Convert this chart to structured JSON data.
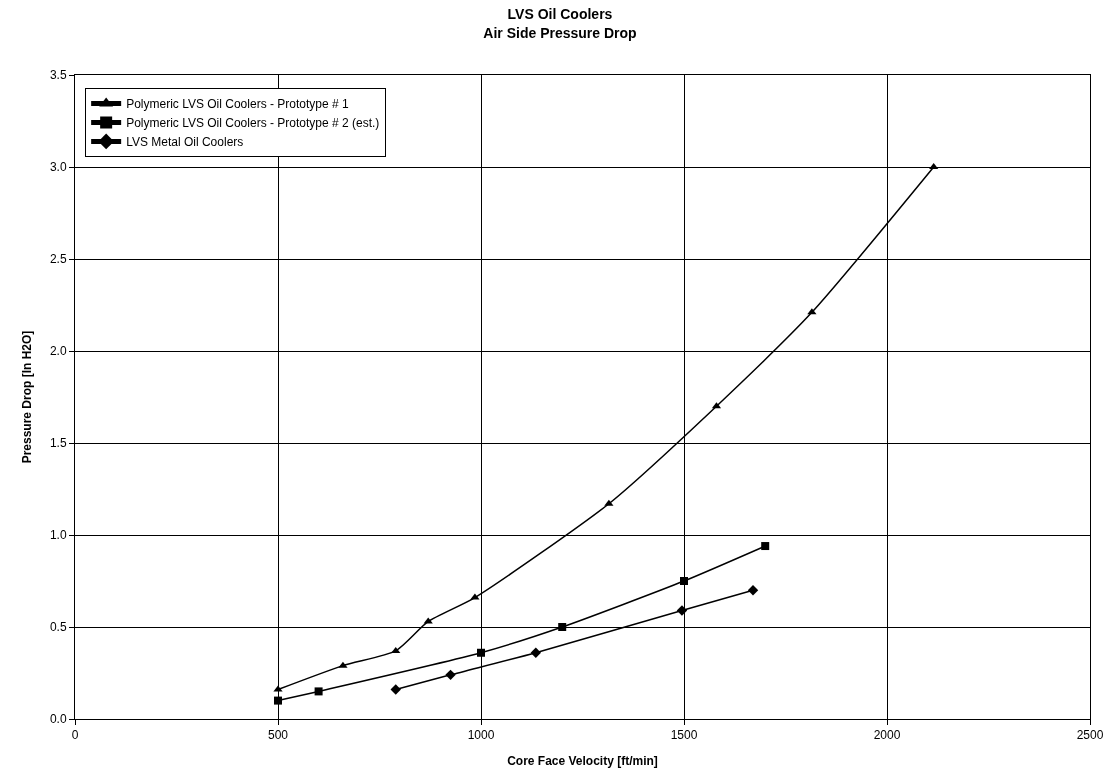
{
  "chart_data": {
    "type": "line",
    "title": "LVS Oil Coolers",
    "subtitle": "Air Side Pressure Drop",
    "xlabel": "Core Face Velocity [ft/min]",
    "ylabel": "Pressure Drop [In H2O]",
    "xlim": [
      0,
      2500
    ],
    "xticks": [
      0,
      500,
      1000,
      1500,
      2000,
      2500
    ],
    "ylim": [
      0,
      3.5
    ],
    "yticks": [
      {
        "value": 0,
        "label": "0.0"
      },
      {
        "value": 0.5,
        "label": "0.5"
      },
      {
        "value": 1,
        "label": "1.0"
      },
      {
        "value": 1.5,
        "label": "1.5"
      },
      {
        "value": 2,
        "label": "2.0"
      },
      {
        "value": 2.5,
        "label": "2.5"
      },
      {
        "value": 3,
        "label": "3.0"
      },
      {
        "value": 3.5,
        "label": "3.5"
      }
    ],
    "grid": true,
    "legend": "top left",
    "series": [
      {
        "name": "Polymeric LVS Oil Coolers - Prototype # 1",
        "color": "#000000",
        "marker": "triangle",
        "x": [
          500,
          660,
          790,
          870,
          985,
          1315,
          1580,
          1815,
          2115
        ],
        "values": [
          0.16,
          0.29,
          0.37,
          0.53,
          0.66,
          1.17,
          1.7,
          2.21,
          3.0
        ]
      },
      {
        "name": "Polymeric LVS Oil Coolers - Prototype # 2 (est.)",
        "color": "#000000",
        "marker": "square",
        "x": [
          500,
          600,
          1000,
          1200,
          1500,
          1700
        ],
        "values": [
          0.1,
          0.15,
          0.36,
          0.5,
          0.75,
          0.94
        ]
      },
      {
        "name": "LVS Metal Oil Coolers",
        "color": "#000000",
        "marker": "diamond",
        "x": [
          790,
          925,
          1135,
          1495,
          1670
        ],
        "values": [
          0.16,
          0.24,
          0.36,
          0.59,
          0.7
        ]
      }
    ]
  }
}
